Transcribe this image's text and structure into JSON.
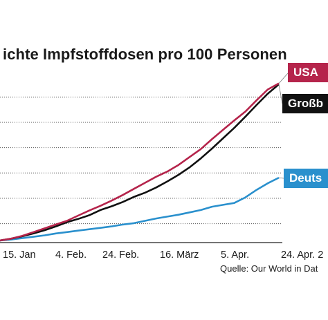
{
  "title": "ichte Impfstoffdosen pro 100 Personen",
  "source": "Quelle: Our World in Dat",
  "chart_data": {
    "type": "line",
    "title": "ichte Impfstoffdosen pro 100 Personen",
    "x_ticks": [
      "15. Jan",
      "4. Feb.",
      "24. Feb.",
      "16. März",
      "5. Apr.",
      "24. Apr. 2"
    ],
    "series": [
      {
        "name": "USA",
        "color": "#b5244b",
        "label": "USA",
        "points": [
          [
            0,
            0.0
          ],
          [
            4,
            0.4
          ],
          [
            8,
            1.0
          ],
          [
            12,
            1.8
          ],
          [
            16,
            2.6
          ],
          [
            20,
            3.4
          ],
          [
            24,
            4.2
          ],
          [
            28,
            5.3
          ],
          [
            32,
            6.4
          ],
          [
            36,
            7.4
          ],
          [
            40,
            8.5
          ],
          [
            44,
            9.7
          ],
          [
            48,
            11.0
          ],
          [
            52,
            12.3
          ],
          [
            56,
            13.6
          ],
          [
            60,
            14.7
          ],
          [
            64,
            16.1
          ],
          [
            68,
            17.8
          ],
          [
            72,
            19.5
          ],
          [
            76,
            21.6
          ],
          [
            80,
            23.6
          ],
          [
            84,
            25.6
          ],
          [
            88,
            27.5
          ],
          [
            92,
            29.9
          ],
          [
            96,
            32.2
          ],
          [
            100,
            33.5
          ]
        ]
      },
      {
        "name": "Großbritannien",
        "color": "#111111",
        "label": "Großb",
        "points": [
          [
            0,
            0.0
          ],
          [
            4,
            0.4
          ],
          [
            8,
            0.9
          ],
          [
            12,
            1.5
          ],
          [
            16,
            2.2
          ],
          [
            20,
            3.0
          ],
          [
            24,
            3.9
          ],
          [
            28,
            4.6
          ],
          [
            32,
            5.4
          ],
          [
            36,
            6.5
          ],
          [
            40,
            7.3
          ],
          [
            44,
            8.2
          ],
          [
            48,
            9.3
          ],
          [
            52,
            10.2
          ],
          [
            56,
            11.3
          ],
          [
            60,
            12.6
          ],
          [
            64,
            14.0
          ],
          [
            68,
            15.6
          ],
          [
            72,
            17.5
          ],
          [
            76,
            19.6
          ],
          [
            80,
            21.8
          ],
          [
            84,
            24.0
          ],
          [
            88,
            26.4
          ],
          [
            92,
            28.9
          ],
          [
            96,
            31.3
          ],
          [
            100,
            33.3
          ]
        ]
      },
      {
        "name": "Deutschland",
        "color": "#2a90cd",
        "label": "Deuts",
        "points": [
          [
            0,
            0.0
          ],
          [
            4,
            0.2
          ],
          [
            8,
            0.5
          ],
          [
            12,
            0.8
          ],
          [
            16,
            1.1
          ],
          [
            20,
            1.5
          ],
          [
            24,
            1.8
          ],
          [
            28,
            2.1
          ],
          [
            32,
            2.4
          ],
          [
            36,
            2.7
          ],
          [
            40,
            3.0
          ],
          [
            44,
            3.4
          ],
          [
            48,
            3.7
          ],
          [
            52,
            4.2
          ],
          [
            56,
            4.7
          ],
          [
            60,
            5.1
          ],
          [
            64,
            5.5
          ],
          [
            68,
            6.0
          ],
          [
            72,
            6.5
          ],
          [
            76,
            7.2
          ],
          [
            80,
            7.6
          ],
          [
            84,
            8.0
          ],
          [
            88,
            9.2
          ],
          [
            92,
            10.8
          ],
          [
            96,
            12.2
          ],
          [
            100,
            13.4
          ]
        ]
      }
    ],
    "y_grid_values": [
      3.6,
      9.0,
      14.4,
      19.8,
      25.2,
      30.6
    ],
    "grid": true
  }
}
